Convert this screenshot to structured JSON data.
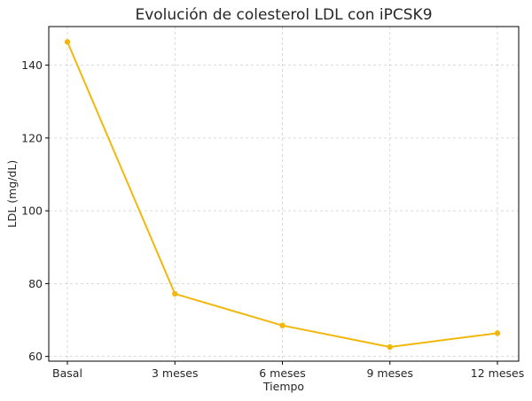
{
  "chart_data": {
    "type": "line",
    "title": "Evolución de colesterol LDL con iPCSK9",
    "xlabel": "Tiempo",
    "ylabel": "LDL (mg/dL)",
    "categories": [
      "Basal",
      "3 meses",
      "6 meses",
      "9 meses",
      "12 meses"
    ],
    "series": [
      {
        "values": [
          146.4,
          77.2,
          68.5,
          62.6,
          66.4
        ]
      }
    ],
    "yticks": [
      60,
      80,
      100,
      120,
      140
    ],
    "ylim": [
      58.7,
      150.6
    ],
    "grid": true,
    "line_color": "#F2B70C"
  }
}
